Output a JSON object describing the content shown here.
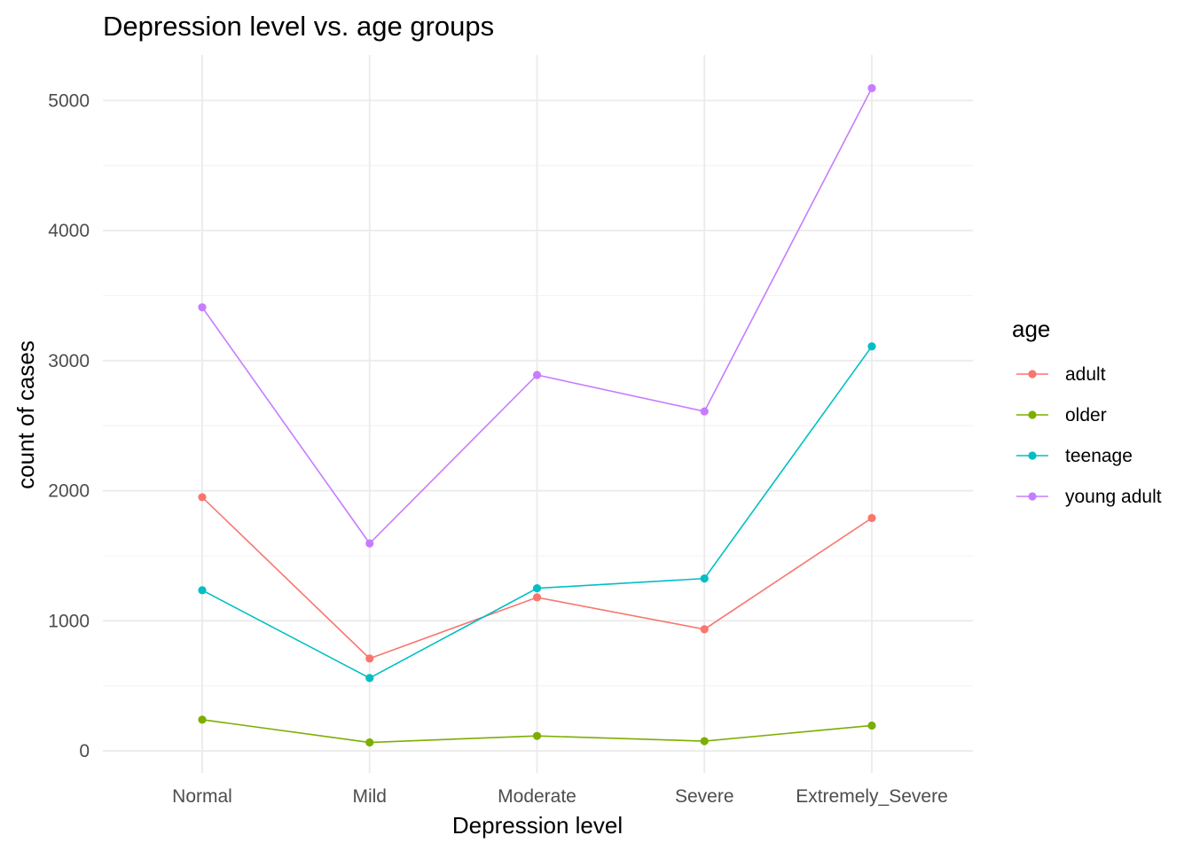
{
  "chart_data": {
    "type": "line",
    "title": "Depression level vs. age groups",
    "xlabel": "Depression level",
    "ylabel": "count of cases",
    "categories": [
      "Normal",
      "Mild",
      "Moderate",
      "Severe",
      "Extremely_Severe"
    ],
    "y_ticks": [
      0,
      1000,
      2000,
      3000,
      4000,
      5000
    ],
    "ylim": [
      -170,
      5350
    ],
    "grid": true,
    "legend": {
      "title": "age",
      "position": "right"
    },
    "series": [
      {
        "name": "adult",
        "color": "#F8766D",
        "values": [
          1950,
          710,
          1180,
          935,
          1790
        ]
      },
      {
        "name": "older",
        "color": "#7CAE00",
        "values": [
          240,
          65,
          115,
          75,
          195
        ]
      },
      {
        "name": "teenage",
        "color": "#00BFC4",
        "values": [
          1235,
          560,
          1250,
          1325,
          3110
        ]
      },
      {
        "name": "young adult",
        "color": "#C77CFF",
        "values": [
          3410,
          1595,
          2890,
          2610,
          5095
        ]
      }
    ]
  }
}
